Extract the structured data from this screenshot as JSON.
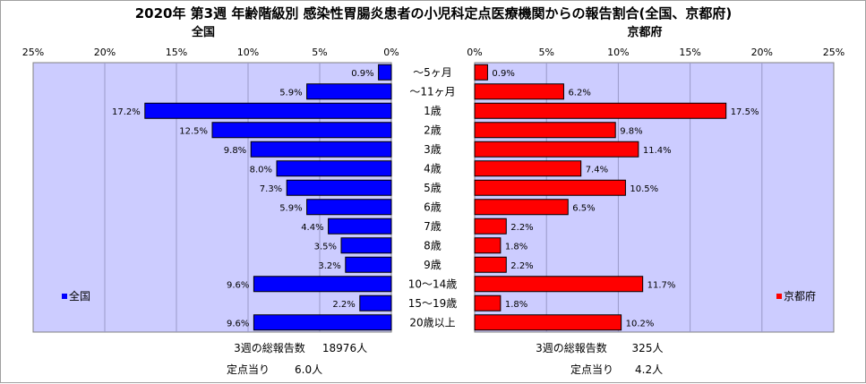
{
  "title": "2020年 第3週 年齢階級別 感染性胃腸炎患者の小児科定点医療機関からの報告割合(全国、京都府)",
  "chart_data": {
    "type": "bar",
    "orientation": "horizontal",
    "categories": [
      "～5ヶ月",
      "～11ヶ月",
      "1歳",
      "2歳",
      "3歳",
      "4歳",
      "5歳",
      "6歳",
      "7歳",
      "8歳",
      "9歳",
      "10～14歳",
      "15～19歳",
      "20歳以上"
    ],
    "series": [
      {
        "name": "全国",
        "color": "#0000ff",
        "values": [
          0.9,
          5.9,
          17.2,
          12.5,
          9.8,
          8.0,
          7.3,
          5.9,
          4.4,
          3.5,
          3.2,
          9.6,
          2.2,
          9.6
        ],
        "labels": [
          "0.9%",
          "5.9%",
          "17.2%",
          "12.5%",
          "9.8%",
          "8.0%",
          "7.3%",
          "5.9%",
          "4.4%",
          "3.5%",
          "3.2%",
          "9.6%",
          "2.2%",
          "9.6%"
        ],
        "xlim": [
          0,
          25
        ],
        "direction": "reversed"
      },
      {
        "name": "京都府",
        "color": "#ff0000",
        "values": [
          0.9,
          6.2,
          17.5,
          9.8,
          11.4,
          7.4,
          10.5,
          6.5,
          2.2,
          1.8,
          2.2,
          11.7,
          1.8,
          10.2
        ],
        "labels": [
          "0.9%",
          "6.2%",
          "17.5%",
          "9.8%",
          "11.4%",
          "7.4%",
          "10.5%",
          "6.5%",
          "2.2%",
          "1.8%",
          "2.2%",
          "11.7%",
          "1.8%",
          "10.2%"
        ],
        "xlim": [
          0,
          25
        ],
        "direction": "normal"
      }
    ],
    "left_ticks": [
      "25%",
      "20%",
      "15%",
      "10%",
      "5%",
      "0%"
    ],
    "right_ticks": [
      "0%",
      "5%",
      "10%",
      "15%",
      "20%",
      "25%"
    ],
    "grid": true,
    "legend": [
      {
        "label": "全国",
        "position": "left"
      },
      {
        "label": "京都府",
        "position": "right"
      }
    ],
    "plot_bg": "#ccccff"
  },
  "footer": {
    "national_total_label": "3週の総報告数",
    "national_total_value": "18976人",
    "national_per_label": "定点当り",
    "national_per_value": "6.0人",
    "kyoto_total_label": "3週の総報告数",
    "kyoto_total_value": "325人",
    "kyoto_per_label": "定点当り",
    "kyoto_per_value": "4.2人"
  }
}
